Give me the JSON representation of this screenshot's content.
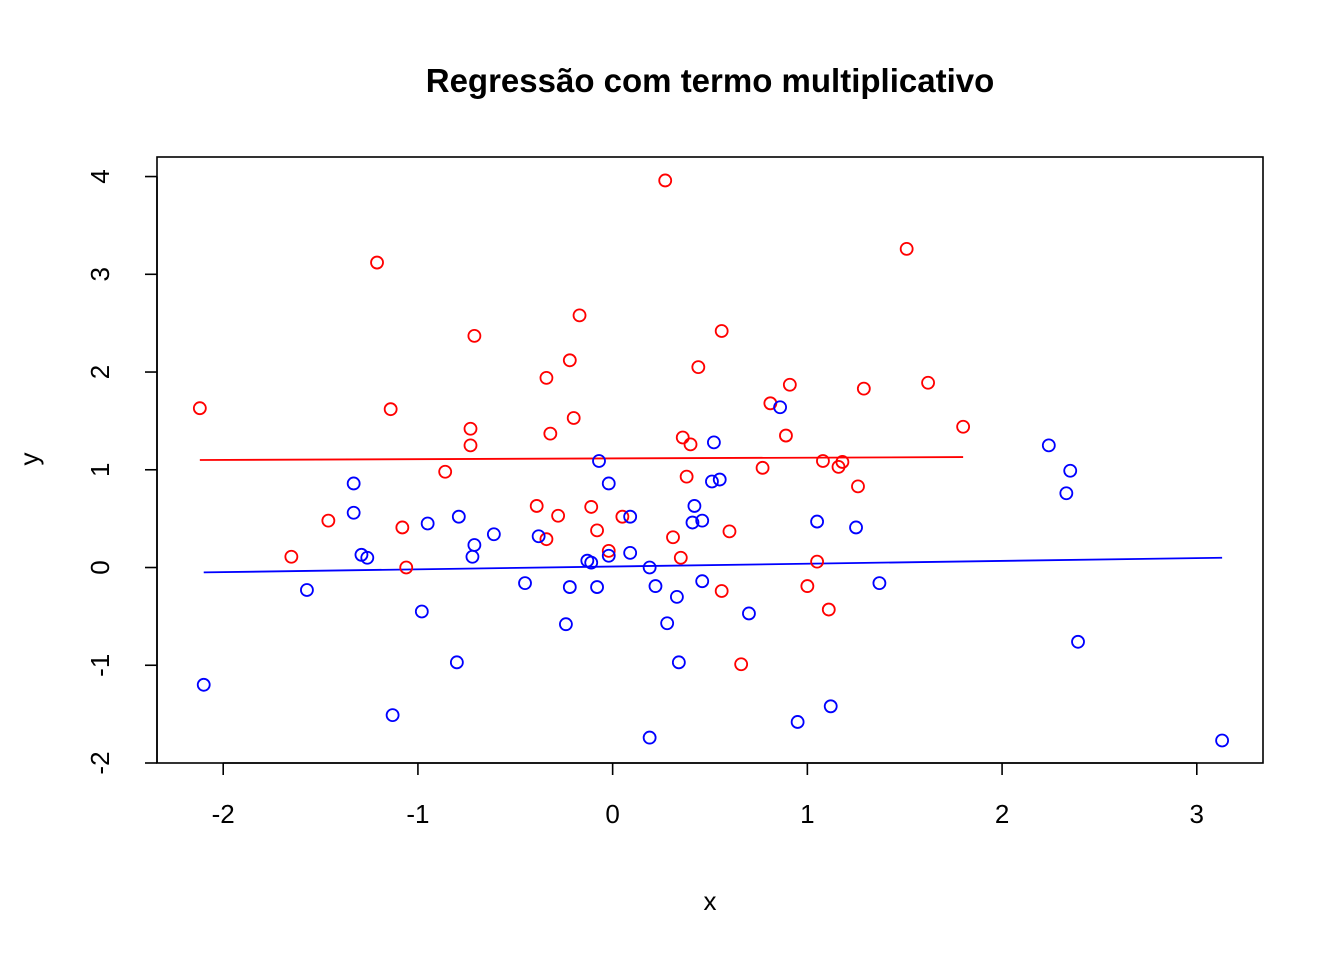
{
  "chart_data": {
    "type": "scatter",
    "title": "Regressão com termo multiplicativo",
    "xlabel": "x",
    "ylabel": "y",
    "xlim": [
      -2.34,
      3.34
    ],
    "ylim": [
      -2.0,
      4.2
    ],
    "x_ticks": [
      -2,
      -1,
      0,
      1,
      2,
      3
    ],
    "y_ticks": [
      -2,
      -1,
      0,
      1,
      2,
      3,
      4
    ],
    "grid": false,
    "legend": "none",
    "series": [
      {
        "color": "#ff0000",
        "marker": "open-circle",
        "points": [
          [
            -2.12,
            1.63
          ],
          [
            -1.65,
            0.11
          ],
          [
            -1.46,
            0.48
          ],
          [
            -1.21,
            3.12
          ],
          [
            -1.14,
            1.62
          ],
          [
            -1.08,
            0.41
          ],
          [
            -1.06,
            0.0
          ],
          [
            -0.86,
            0.98
          ],
          [
            -0.73,
            1.42
          ],
          [
            -0.73,
            1.25
          ],
          [
            -0.71,
            2.37
          ],
          [
            -0.39,
            0.63
          ],
          [
            -0.34,
            1.94
          ],
          [
            -0.34,
            0.29
          ],
          [
            -0.32,
            1.37
          ],
          [
            -0.28,
            0.53
          ],
          [
            -0.22,
            2.12
          ],
          [
            -0.2,
            1.53
          ],
          [
            -0.17,
            2.58
          ],
          [
            -0.11,
            0.62
          ],
          [
            -0.08,
            0.38
          ],
          [
            -0.02,
            0.17
          ],
          [
            0.05,
            0.52
          ],
          [
            0.27,
            3.96
          ],
          [
            0.31,
            0.31
          ],
          [
            0.35,
            0.1
          ],
          [
            0.36,
            1.33
          ],
          [
            0.38,
            0.93
          ],
          [
            0.4,
            1.26
          ],
          [
            0.44,
            2.05
          ],
          [
            0.56,
            -0.24
          ],
          [
            0.56,
            2.42
          ],
          [
            0.6,
            0.37
          ],
          [
            0.66,
            -0.99
          ],
          [
            0.77,
            1.02
          ],
          [
            0.81,
            1.68
          ],
          [
            0.89,
            1.35
          ],
          [
            0.91,
            1.87
          ],
          [
            1.0,
            -0.19
          ],
          [
            1.05,
            0.06
          ],
          [
            1.08,
            1.09
          ],
          [
            1.11,
            -0.43
          ],
          [
            1.16,
            1.03
          ],
          [
            1.18,
            1.08
          ],
          [
            1.26,
            0.83
          ],
          [
            1.29,
            1.83
          ],
          [
            1.51,
            3.26
          ],
          [
            1.62,
            1.89
          ],
          [
            1.8,
            1.44
          ]
        ]
      },
      {
        "color": "#0000ff",
        "marker": "open-circle",
        "points": [
          [
            -2.1,
            -1.2
          ],
          [
            -1.57,
            -0.23
          ],
          [
            -1.33,
            0.86
          ],
          [
            -1.33,
            0.56
          ],
          [
            -1.29,
            0.13
          ],
          [
            -1.26,
            0.1
          ],
          [
            -1.13,
            -1.51
          ],
          [
            -0.98,
            -0.45
          ],
          [
            -0.95,
            0.45
          ],
          [
            -0.8,
            -0.97
          ],
          [
            -0.79,
            0.52
          ],
          [
            -0.72,
            0.11
          ],
          [
            -0.71,
            0.23
          ],
          [
            -0.61,
            0.34
          ],
          [
            -0.45,
            -0.16
          ],
          [
            -0.38,
            0.32
          ],
          [
            -0.24,
            -0.58
          ],
          [
            -0.22,
            -0.2
          ],
          [
            -0.13,
            0.07
          ],
          [
            -0.11,
            0.05
          ],
          [
            -0.08,
            -0.2
          ],
          [
            -0.07,
            1.09
          ],
          [
            -0.02,
            0.12
          ],
          [
            -0.02,
            0.86
          ],
          [
            0.09,
            0.52
          ],
          [
            0.09,
            0.15
          ],
          [
            0.19,
            -1.74
          ],
          [
            0.19,
            0.0
          ],
          [
            0.22,
            -0.19
          ],
          [
            0.28,
            -0.57
          ],
          [
            0.33,
            -0.3
          ],
          [
            0.34,
            -0.97
          ],
          [
            0.41,
            0.46
          ],
          [
            0.42,
            0.63
          ],
          [
            0.46,
            -0.14
          ],
          [
            0.46,
            0.48
          ],
          [
            0.51,
            0.88
          ],
          [
            0.52,
            1.28
          ],
          [
            0.55,
            0.9
          ],
          [
            0.7,
            -0.47
          ],
          [
            0.86,
            1.64
          ],
          [
            0.95,
            -1.58
          ],
          [
            1.05,
            0.47
          ],
          [
            1.12,
            -1.42
          ],
          [
            1.25,
            0.41
          ],
          [
            1.37,
            -0.16
          ],
          [
            2.24,
            1.25
          ],
          [
            2.33,
            0.76
          ],
          [
            2.35,
            0.99
          ],
          [
            2.39,
            -0.76
          ],
          [
            3.13,
            -1.77
          ]
        ]
      }
    ],
    "fit_lines": [
      {
        "color": "#ff0000",
        "from": [
          -2.12,
          1.1
        ],
        "to": [
          1.8,
          1.13
        ]
      },
      {
        "color": "#0000ff",
        "from": [
          -2.1,
          -0.05
        ],
        "to": [
          3.13,
          0.1
        ]
      }
    ]
  }
}
